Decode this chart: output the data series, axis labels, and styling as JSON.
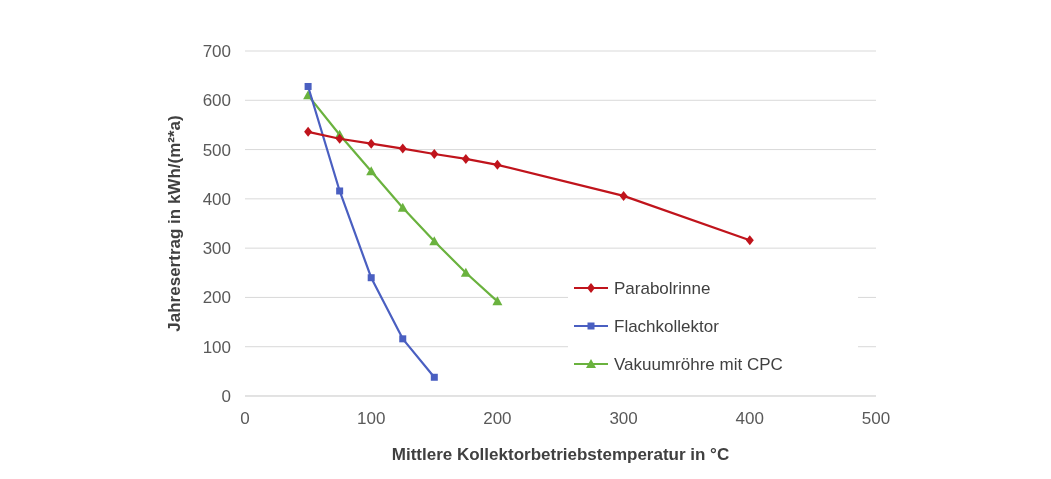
{
  "chart_data": {
    "type": "line",
    "xlabel": "Mittlere Kollektorbetriebstemperatur in °C",
    "ylabel": "Jahresertrag in kWh/(m²*a)",
    "xlim": [
      0,
      500
    ],
    "xticks": [
      0,
      100,
      200,
      300,
      400,
      500
    ],
    "ylim": [
      0,
      700
    ],
    "yticks": [
      0,
      100,
      200,
      300,
      400,
      500,
      600,
      700
    ],
    "grid": "y",
    "legend": "right",
    "series": [
      {
        "name": "Parabolrinne",
        "color": "#c0141c",
        "marker": "diamond",
        "x": [
          50,
          75,
          100,
          125,
          150,
          175,
          200,
          300,
          400
        ],
        "values": [
          536,
          522,
          512,
          502,
          491,
          481,
          469,
          406,
          316
        ]
      },
      {
        "name": "Flachkollektor",
        "color": "#4a5fc1",
        "marker": "square",
        "x": [
          50,
          75,
          100,
          125,
          150
        ],
        "values": [
          628,
          416,
          240,
          116,
          38
        ]
      },
      {
        "name": "Vakuumröhre mit CPC",
        "color": "#6ab23e",
        "marker": "triangle",
        "x": [
          50,
          75,
          100,
          125,
          150,
          175,
          200
        ],
        "values": [
          610,
          530,
          456,
          382,
          314,
          250,
          192
        ]
      }
    ]
  }
}
